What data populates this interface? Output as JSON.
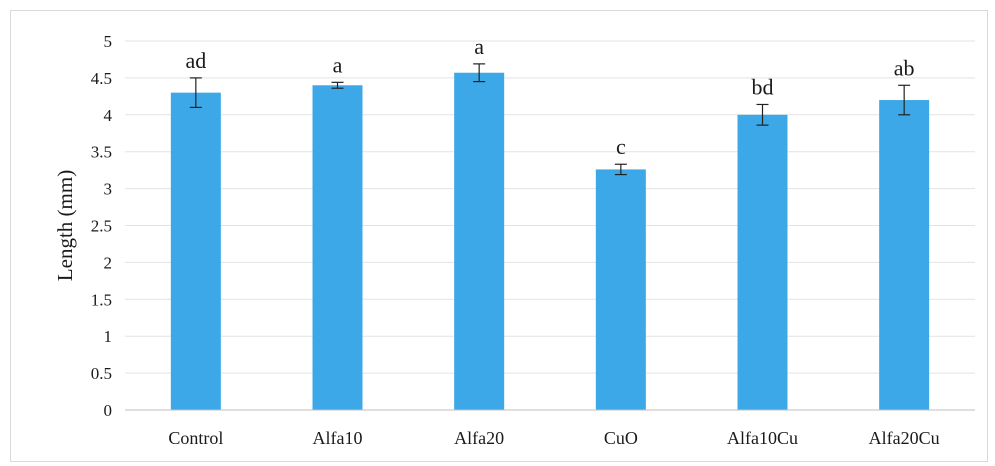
{
  "chart_data": {
    "type": "bar",
    "title": "",
    "xlabel": "",
    "ylabel": "Length (mm)",
    "ylim": [
      0,
      5
    ],
    "yticks": [
      "0",
      "0.5",
      "1",
      "1.5",
      "2",
      "2.5",
      "3",
      "3.5",
      "4",
      "4.5",
      "5"
    ],
    "grid": true,
    "categories": [
      "Control",
      "Alfa10",
      "Alfa20",
      "CuO",
      "Alfa10Cu",
      "Alfa20Cu"
    ],
    "values": [
      4.3,
      4.4,
      4.57,
      3.26,
      4.0,
      4.2
    ],
    "error": [
      0.2,
      0.04,
      0.12,
      0.07,
      0.14,
      0.2
    ],
    "significance_labels": [
      "ad",
      "a",
      "a",
      "c",
      "bd",
      "ab"
    ],
    "bar_color": "#3da8e8",
    "grid_color": "#e3e3e3"
  }
}
